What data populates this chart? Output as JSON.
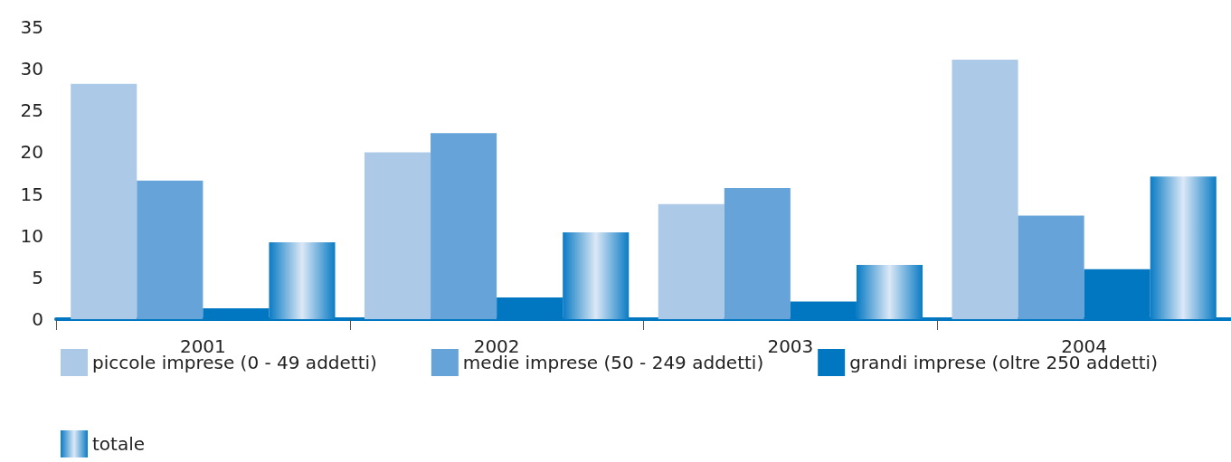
{
  "chart_data": {
    "type": "bar",
    "categories": [
      "2001",
      "2002",
      "2003",
      "2004"
    ],
    "series": [
      {
        "name": "piccole imprese (0 - 49 addetti)",
        "color": "#adc9e8",
        "values": [
          28.2,
          20,
          13.8,
          31.1
        ]
      },
      {
        "name": "medie imprese (50 - 249 addetti)",
        "color": "#65a3d8",
        "values": [
          16.6,
          22.3,
          15.7,
          12.4
        ]
      },
      {
        "name": "grandi imprese (oltre 250 addetti)",
        "color": "#0077c0",
        "values": [
          1.3,
          2.6,
          2.1,
          6
        ]
      },
      {
        "name": "totale",
        "color": "#0a7bc4",
        "values": [
          9.2,
          10.4,
          6.5,
          17.1
        ]
      }
    ],
    "ylim": [
      0,
      35
    ],
    "yticks": [
      0,
      5,
      10,
      15,
      20,
      25,
      30,
      35
    ],
    "grid": false,
    "legend": "bottom"
  }
}
